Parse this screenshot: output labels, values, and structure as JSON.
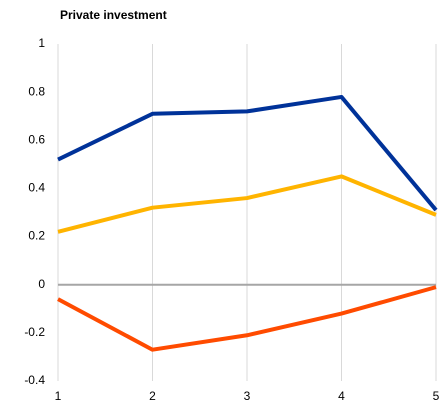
{
  "chart_data": {
    "type": "line",
    "title": "Private investment",
    "x": [
      1,
      2,
      3,
      4,
      5
    ],
    "series": [
      {
        "color": "#003299",
        "values": [
          0.52,
          0.71,
          0.72,
          0.78,
          0.31
        ]
      },
      {
        "color": "#ffb400",
        "values": [
          0.22,
          0.32,
          0.36,
          0.45,
          0.29
        ]
      },
      {
        "color": "#ff4b00",
        "values": [
          -0.06,
          -0.27,
          -0.21,
          -0.12,
          -0.01
        ]
      }
    ],
    "xlim": [
      1,
      5
    ],
    "xticks": [
      1,
      2,
      3,
      4,
      5
    ],
    "ylim": [
      -0.4,
      1
    ],
    "yticks": [
      -0.4,
      -0.2,
      0,
      0.2,
      0.4,
      0.6,
      0.8,
      1
    ],
    "grid": true
  }
}
